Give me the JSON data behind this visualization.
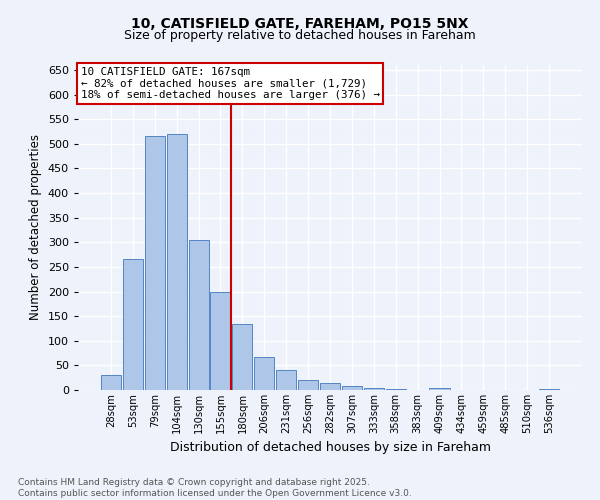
{
  "title1": "10, CATISFIELD GATE, FAREHAM, PO15 5NX",
  "title2": "Size of property relative to detached houses in Fareham",
  "xlabel": "Distribution of detached houses by size in Fareham",
  "ylabel": "Number of detached properties",
  "bar_labels": [
    "28sqm",
    "53sqm",
    "79sqm",
    "104sqm",
    "130sqm",
    "155sqm",
    "180sqm",
    "206sqm",
    "231sqm",
    "256sqm",
    "282sqm",
    "307sqm",
    "333sqm",
    "358sqm",
    "383sqm",
    "409sqm",
    "434sqm",
    "459sqm",
    "485sqm",
    "510sqm",
    "536sqm"
  ],
  "bar_values": [
    31,
    267,
    516,
    519,
    304,
    199,
    135,
    67,
    40,
    21,
    15,
    8,
    5,
    3,
    0,
    4,
    0,
    1,
    0,
    0,
    3
  ],
  "bar_color": "#aec6e8",
  "bar_edge_color": "#5585c5",
  "annotation_label": "10 CATISFIELD GATE: 167sqm",
  "annotation_line_label1": "← 82% of detached houses are smaller (1,729)",
  "annotation_line_label2": "18% of semi-detached houses are larger (376) →",
  "annotation_box_color": "#ffffff",
  "annotation_box_edge": "#cc0000",
  "vline_color": "#cc0000",
  "vline_x_index": 5.48,
  "ylim": [
    0,
    660
  ],
  "yticks": [
    0,
    50,
    100,
    150,
    200,
    250,
    300,
    350,
    400,
    450,
    500,
    550,
    600,
    650
  ],
  "footer_line1": "Contains HM Land Registry data © Crown copyright and database right 2025.",
  "footer_line2": "Contains public sector information licensed under the Open Government Licence v3.0.",
  "background_color": "#eef2fb",
  "grid_color": "#ffffff"
}
